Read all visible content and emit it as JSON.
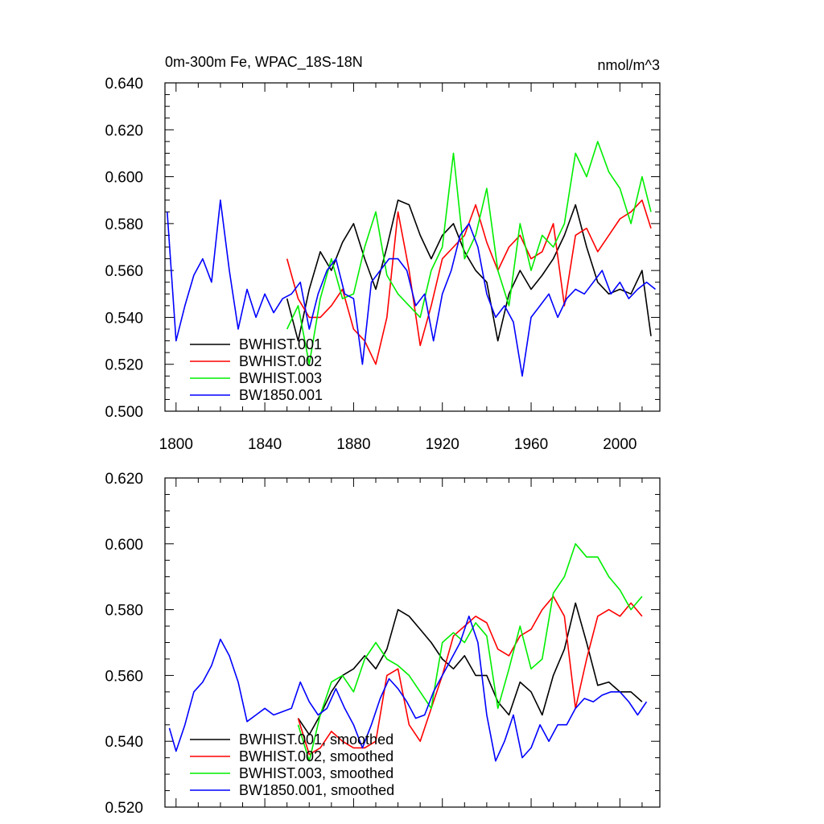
{
  "figure": {
    "title_left": "0m-300m Fe, WPAC_18S-18N",
    "title_right": "nmol/m^3"
  },
  "chart_data": [
    {
      "type": "line",
      "title": "0m-300m Fe, WPAC_18S-18N",
      "units": "nmol/m^3",
      "xlim": [
        1795,
        2018
      ],
      "ylim": [
        0.5,
        0.64
      ],
      "xticks": [
        1800,
        1840,
        1880,
        1920,
        1960,
        2000
      ],
      "xtick_labels": [
        "1800",
        "1840",
        "1880",
        "1920",
        "1960",
        "2000"
      ],
      "yticks": [
        0.5,
        0.52,
        0.54,
        0.56,
        0.58,
        0.6,
        0.62,
        0.64
      ],
      "ytick_labels": [
        "0.500",
        "0.520",
        "0.540",
        "0.560",
        "0.580",
        "0.600",
        "0.620",
        "0.640"
      ],
      "legend_position": "bottom-left",
      "grid": false,
      "series": [
        {
          "name": "BWHIST.001",
          "color": "#000000",
          "x": [
            1850,
            1855,
            1860,
            1865,
            1870,
            1875,
            1880,
            1885,
            1890,
            1895,
            1900,
            1905,
            1910,
            1915,
            1920,
            1925,
            1930,
            1935,
            1940,
            1945,
            1950,
            1955,
            1960,
            1965,
            1970,
            1975,
            1980,
            1985,
            1990,
            1995,
            2000,
            2005,
            2010,
            2014
          ],
          "y": [
            0.548,
            0.53,
            0.552,
            0.568,
            0.56,
            0.572,
            0.58,
            0.565,
            0.552,
            0.57,
            0.59,
            0.588,
            0.575,
            0.565,
            0.575,
            0.58,
            0.568,
            0.56,
            0.555,
            0.53,
            0.55,
            0.56,
            0.552,
            0.558,
            0.565,
            0.575,
            0.588,
            0.57,
            0.555,
            0.55,
            0.552,
            0.55,
            0.56,
            0.532
          ]
        },
        {
          "name": "BWHIST.002",
          "color": "#ff0000",
          "x": [
            1850,
            1855,
            1860,
            1865,
            1870,
            1875,
            1880,
            1885,
            1890,
            1895,
            1900,
            1905,
            1910,
            1915,
            1920,
            1925,
            1930,
            1935,
            1940,
            1945,
            1950,
            1955,
            1960,
            1965,
            1970,
            1975,
            1980,
            1985,
            1990,
            1995,
            2000,
            2005,
            2010,
            2014
          ],
          "y": [
            0.565,
            0.548,
            0.54,
            0.54,
            0.545,
            0.552,
            0.535,
            0.53,
            0.52,
            0.54,
            0.585,
            0.56,
            0.528,
            0.545,
            0.565,
            0.57,
            0.575,
            0.588,
            0.572,
            0.56,
            0.57,
            0.575,
            0.565,
            0.568,
            0.58,
            0.545,
            0.575,
            0.578,
            0.568,
            0.575,
            0.582,
            0.585,
            0.59,
            0.578
          ]
        },
        {
          "name": "BWHIST.003",
          "color": "#00ee00",
          "x": [
            1850,
            1855,
            1860,
            1865,
            1870,
            1875,
            1880,
            1885,
            1890,
            1895,
            1900,
            1905,
            1910,
            1915,
            1920,
            1925,
            1930,
            1935,
            1940,
            1945,
            1950,
            1955,
            1960,
            1965,
            1970,
            1975,
            1980,
            1985,
            1990,
            1995,
            2000,
            2005,
            2010,
            2014
          ],
          "y": [
            0.535,
            0.545,
            0.52,
            0.548,
            0.565,
            0.548,
            0.55,
            0.57,
            0.585,
            0.558,
            0.55,
            0.545,
            0.54,
            0.56,
            0.57,
            0.61,
            0.565,
            0.575,
            0.595,
            0.56,
            0.545,
            0.58,
            0.56,
            0.575,
            0.57,
            0.58,
            0.61,
            0.6,
            0.615,
            0.602,
            0.595,
            0.58,
            0.6,
            0.585
          ]
        },
        {
          "name": "BW1850.001",
          "color": "#0000ff",
          "x": [
            1796,
            1800,
            1804,
            1808,
            1812,
            1816,
            1820,
            1824,
            1828,
            1832,
            1836,
            1840,
            1844,
            1848,
            1852,
            1856,
            1860,
            1864,
            1868,
            1872,
            1876,
            1880,
            1884,
            1888,
            1892,
            1896,
            1900,
            1904,
            1908,
            1912,
            1916,
            1920,
            1924,
            1928,
            1932,
            1936,
            1940,
            1944,
            1948,
            1952,
            1956,
            1960,
            1964,
            1968,
            1972,
            1976,
            1980,
            1984,
            1988,
            1992,
            1996,
            2000,
            2004,
            2008,
            2012,
            2016
          ],
          "y": [
            0.585,
            0.53,
            0.545,
            0.558,
            0.565,
            0.555,
            0.59,
            0.56,
            0.535,
            0.552,
            0.54,
            0.55,
            0.542,
            0.548,
            0.55,
            0.555,
            0.535,
            0.55,
            0.56,
            0.565,
            0.55,
            0.548,
            0.52,
            0.555,
            0.56,
            0.565,
            0.565,
            0.56,
            0.545,
            0.55,
            0.53,
            0.55,
            0.56,
            0.575,
            0.58,
            0.57,
            0.55,
            0.54,
            0.545,
            0.538,
            0.515,
            0.54,
            0.545,
            0.55,
            0.54,
            0.548,
            0.552,
            0.55,
            0.555,
            0.56,
            0.55,
            0.555,
            0.548,
            0.552,
            0.555,
            0.552
          ]
        }
      ]
    },
    {
      "type": "line",
      "xlim": [
        1795,
        2018
      ],
      "ylim": [
        0.52,
        0.62
      ],
      "xticks": [
        1800,
        1840,
        1880,
        1920,
        1960,
        2000
      ],
      "yticks": [
        0.52,
        0.54,
        0.56,
        0.58,
        0.6,
        0.62
      ],
      "ytick_labels": [
        "0.520",
        "0.540",
        "0.560",
        "0.580",
        "0.600",
        "0.620"
      ],
      "legend_position": "bottom-left",
      "grid": false,
      "series": [
        {
          "name": "BWHIST.001, smoothed",
          "color": "#000000",
          "x": [
            1855,
            1860,
            1865,
            1870,
            1875,
            1880,
            1885,
            1890,
            1895,
            1900,
            1905,
            1910,
            1915,
            1920,
            1925,
            1930,
            1935,
            1940,
            1945,
            1950,
            1955,
            1960,
            1965,
            1970,
            1975,
            1980,
            1985,
            1990,
            1995,
            2000,
            2005,
            2010
          ],
          "y": [
            0.547,
            0.542,
            0.548,
            0.555,
            0.56,
            0.562,
            0.566,
            0.562,
            0.568,
            0.58,
            0.578,
            0.574,
            0.57,
            0.565,
            0.562,
            0.566,
            0.56,
            0.56,
            0.552,
            0.548,
            0.558,
            0.555,
            0.548,
            0.56,
            0.568,
            0.582,
            0.57,
            0.557,
            0.558,
            0.555,
            0.555,
            0.552
          ]
        },
        {
          "name": "BWHIST.002, smoothed",
          "color": "#ff0000",
          "x": [
            1855,
            1860,
            1865,
            1870,
            1875,
            1880,
            1885,
            1890,
            1895,
            1900,
            1905,
            1910,
            1915,
            1920,
            1925,
            1930,
            1935,
            1940,
            1945,
            1950,
            1955,
            1960,
            1965,
            1970,
            1975,
            1980,
            1985,
            1990,
            1995,
            2000,
            2005,
            2010
          ],
          "y": [
            0.547,
            0.536,
            0.538,
            0.543,
            0.54,
            0.538,
            0.538,
            0.54,
            0.56,
            0.562,
            0.545,
            0.54,
            0.55,
            0.56,
            0.572,
            0.575,
            0.578,
            0.576,
            0.568,
            0.566,
            0.572,
            0.574,
            0.58,
            0.584,
            0.578,
            0.55,
            0.565,
            0.578,
            0.58,
            0.578,
            0.582,
            0.578
          ]
        },
        {
          "name": "BWHIST.003, smoothed",
          "color": "#00ee00",
          "x": [
            1855,
            1860,
            1865,
            1870,
            1875,
            1880,
            1885,
            1890,
            1895,
            1900,
            1905,
            1910,
            1915,
            1920,
            1925,
            1930,
            1935,
            1940,
            1945,
            1950,
            1955,
            1960,
            1965,
            1970,
            1975,
            1980,
            1985,
            1990,
            1995,
            2000,
            2005,
            2010
          ],
          "y": [
            0.545,
            0.534,
            0.548,
            0.558,
            0.56,
            0.555,
            0.565,
            0.57,
            0.565,
            0.563,
            0.56,
            0.555,
            0.55,
            0.57,
            0.573,
            0.57,
            0.576,
            0.572,
            0.55,
            0.562,
            0.575,
            0.562,
            0.565,
            0.585,
            0.59,
            0.6,
            0.596,
            0.596,
            0.59,
            0.586,
            0.58,
            0.584
          ]
        },
        {
          "name": "BW1850.001, smoothed",
          "color": "#0000ff",
          "x": [
            1797,
            1800,
            1804,
            1808,
            1812,
            1816,
            1820,
            1824,
            1828,
            1832,
            1836,
            1840,
            1844,
            1848,
            1852,
            1856,
            1860,
            1864,
            1868,
            1872,
            1876,
            1880,
            1884,
            1888,
            1892,
            1896,
            1900,
            1904,
            1908,
            1912,
            1916,
            1920,
            1924,
            1928,
            1932,
            1936,
            1940,
            1944,
            1948,
            1952,
            1956,
            1960,
            1964,
            1968,
            1972,
            1976,
            1980,
            1984,
            1988,
            1992,
            1996,
            2000,
            2004,
            2008,
            2012
          ],
          "y": [
            0.544,
            0.537,
            0.545,
            0.555,
            0.558,
            0.563,
            0.571,
            0.566,
            0.558,
            0.546,
            0.548,
            0.55,
            0.548,
            0.549,
            0.55,
            0.558,
            0.552,
            0.548,
            0.55,
            0.556,
            0.55,
            0.545,
            0.538,
            0.545,
            0.553,
            0.559,
            0.556,
            0.552,
            0.547,
            0.548,
            0.555,
            0.56,
            0.565,
            0.57,
            0.578,
            0.57,
            0.548,
            0.534,
            0.54,
            0.548,
            0.535,
            0.538,
            0.545,
            0.54,
            0.545,
            0.545,
            0.55,
            0.553,
            0.552,
            0.554,
            0.555,
            0.555,
            0.552,
            0.548,
            0.552
          ]
        }
      ]
    }
  ]
}
